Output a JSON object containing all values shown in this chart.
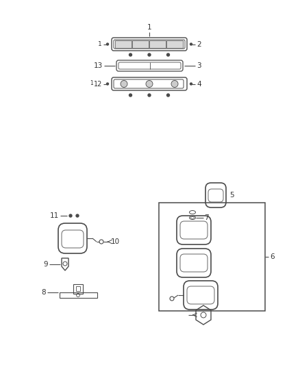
{
  "bg_color": "#ffffff",
  "line_color": "#4a4a4a",
  "text_color": "#333333",
  "fig_width": 4.38,
  "fig_height": 5.33
}
